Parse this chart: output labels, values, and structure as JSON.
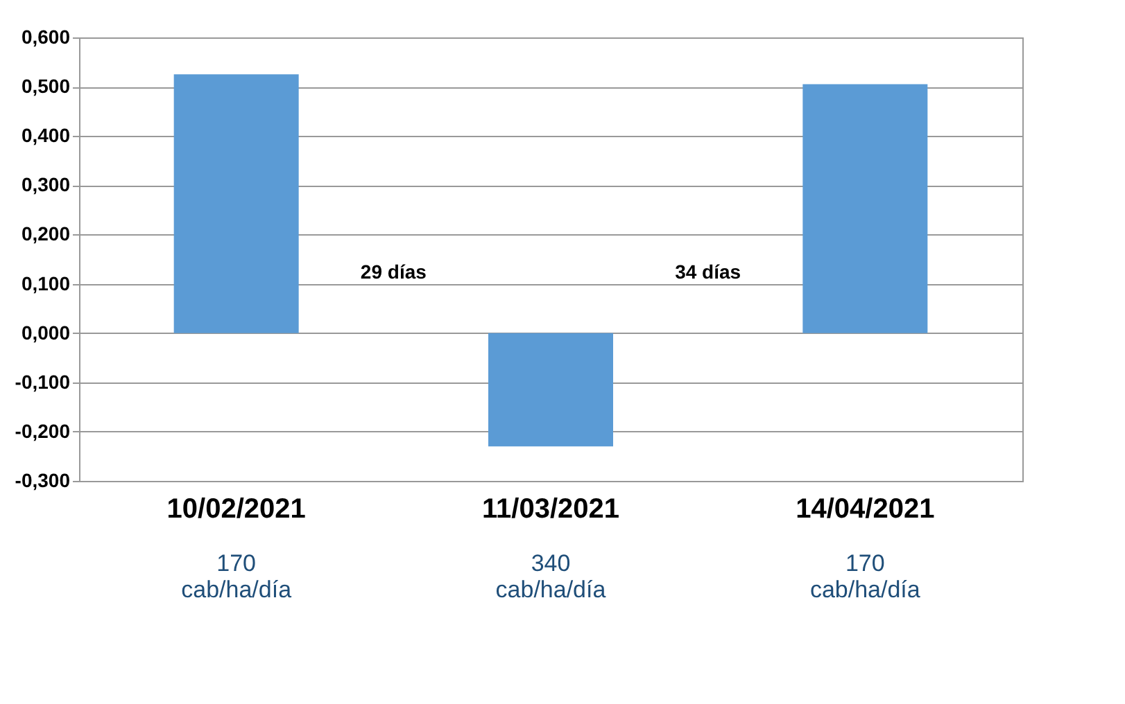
{
  "chart_data": {
    "type": "bar",
    "categories": [
      "10/02/2021",
      "11/03/2021",
      "14/04/2021"
    ],
    "values": [
      0.525,
      -0.23,
      0.505
    ],
    "color": "#5b9bd5",
    "ylim": [
      -0.3,
      0.6
    ],
    "yticks": [
      {
        "value": -0.3,
        "label": "-0,300"
      },
      {
        "value": -0.2,
        "label": "-0,200"
      },
      {
        "value": -0.1,
        "label": "-0,100"
      },
      {
        "value": 0,
        "label": "0,000"
      },
      {
        "value": 0.1,
        "label": "0,100"
      },
      {
        "value": 0.2,
        "label": "0,200"
      },
      {
        "value": 0.3,
        "label": "0,300"
      },
      {
        "value": 0.4,
        "label": "0,400"
      },
      {
        "value": 0.5,
        "label": "0,500"
      },
      {
        "value": 0.6,
        "label": "0,600"
      }
    ],
    "grid": "y",
    "annotations": [
      "29 días",
      "34 días",
      "170\ncab/ha/día",
      "340\ncab/ha/día",
      "170\ncab/ha/día"
    ]
  }
}
